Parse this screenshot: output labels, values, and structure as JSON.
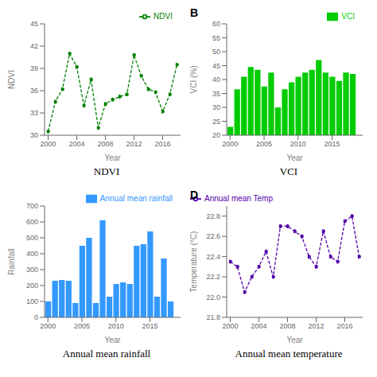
{
  "chart_data": [
    {
      "type": "line",
      "title": "NDVI",
      "xlabel": "Year",
      "ylabel": "NDVI",
      "x": [
        2000,
        2001,
        2002,
        2003,
        2004,
        2005,
        2006,
        2007,
        2008,
        2009,
        2010,
        2011,
        2012,
        2013,
        2014,
        2015,
        2016,
        2017,
        2018
      ],
      "xlim": [
        1999.5,
        2018.5
      ],
      "xticks": [
        2000,
        2004,
        2008,
        2012,
        2016
      ],
      "ylim": [
        30,
        45
      ],
      "yticks": [
        30,
        33,
        36,
        39,
        42,
        45
      ],
      "series": [
        {
          "name": "NDVI",
          "color": "#008000",
          "marker": "dot",
          "line_style": "dashed",
          "values": [
            30.5,
            34.5,
            36.2,
            41.0,
            39.2,
            34.0,
            37.5,
            31.0,
            34.2,
            34.8,
            35.2,
            35.5,
            40.8,
            38.0,
            36.2,
            35.8,
            33.2,
            35.5,
            39.5
          ]
        }
      ],
      "legend": "upper right",
      "grid": false
    },
    {
      "type": "bar",
      "title": "VCI",
      "xlabel": "Year",
      "ylabel": "VCI (%)",
      "annotations": [
        "B"
      ],
      "x": [
        2000,
        2001,
        2002,
        2003,
        2004,
        2005,
        2006,
        2007,
        2008,
        2009,
        2010,
        2011,
        2012,
        2013,
        2014,
        2015,
        2016,
        2017,
        2018
      ],
      "xlim": [
        1999.5,
        2019.5
      ],
      "xticks": [
        2000,
        2005,
        2010,
        2015
      ],
      "ylim": [
        20,
        60
      ],
      "yticks": [
        20,
        25,
        30,
        35,
        40,
        45,
        50,
        55,
        60
      ],
      "series": [
        {
          "name": "VCI",
          "color": "#00cc00",
          "values": [
            23.0,
            36.5,
            41.0,
            44.5,
            43.5,
            37.5,
            42.5,
            30.0,
            36.5,
            39.0,
            41.0,
            42.5,
            43.5,
            47.0,
            42.5,
            41.0,
            39.5,
            42.5,
            42.0
          ]
        }
      ],
      "legend": "upper right",
      "grid": false
    },
    {
      "type": "bar",
      "title": "Annual mean rainfall",
      "xlabel": "Year",
      "ylabel": "Rainfall",
      "x": [
        2000,
        2001,
        2002,
        2003,
        2004,
        2005,
        2006,
        2007,
        2008,
        2009,
        2010,
        2011,
        2012,
        2013,
        2014,
        2015,
        2016,
        2017,
        2018
      ],
      "xlim": [
        1999.5,
        2019.5
      ],
      "xticks": [
        2000,
        2005,
        2010,
        2015
      ],
      "ylim": [
        0,
        700
      ],
      "yticks": [
        0,
        100,
        200,
        300,
        400,
        500,
        600,
        700
      ],
      "series": [
        {
          "name": "Annual mean rainfall",
          "color": "#3399ff",
          "values": [
            100,
            230,
            235,
            230,
            90,
            450,
            500,
            90,
            610,
            130,
            210,
            220,
            210,
            450,
            460,
            540,
            130,
            370,
            100
          ]
        }
      ],
      "legend": "upper right",
      "grid": false
    },
    {
      "type": "line",
      "title": "Annual mean temperature",
      "xlabel": "Year",
      "ylabel": "Temperature (°C)",
      "annotations": [
        "D"
      ],
      "x": [
        2000,
        2001,
        2002,
        2003,
        2004,
        2005,
        2006,
        2007,
        2008,
        2009,
        2010,
        2011,
        2012,
        2013,
        2014,
        2015,
        2016,
        2017,
        2018
      ],
      "xlim": [
        1999.5,
        2018.5
      ],
      "xticks": [
        2000,
        2004,
        2008,
        2012,
        2016
      ],
      "ylim": [
        21.8,
        22.9
      ],
      "yticks": [
        21.8,
        {
          "value": 22.0,
          "label": "22.0"
        },
        22.2,
        22.4,
        22.6,
        22.8
      ],
      "series": [
        {
          "name": "Annual mean Temp",
          "color": "#5500aa",
          "marker": "dot",
          "line_style": "dashed",
          "values": [
            22.35,
            22.3,
            22.05,
            22.2,
            22.3,
            22.45,
            22.2,
            22.7,
            22.7,
            22.65,
            22.6,
            22.4,
            22.3,
            22.65,
            22.4,
            22.35,
            22.75,
            22.8,
            22.4
          ]
        }
      ],
      "legend": "upper left",
      "grid": false
    }
  ]
}
